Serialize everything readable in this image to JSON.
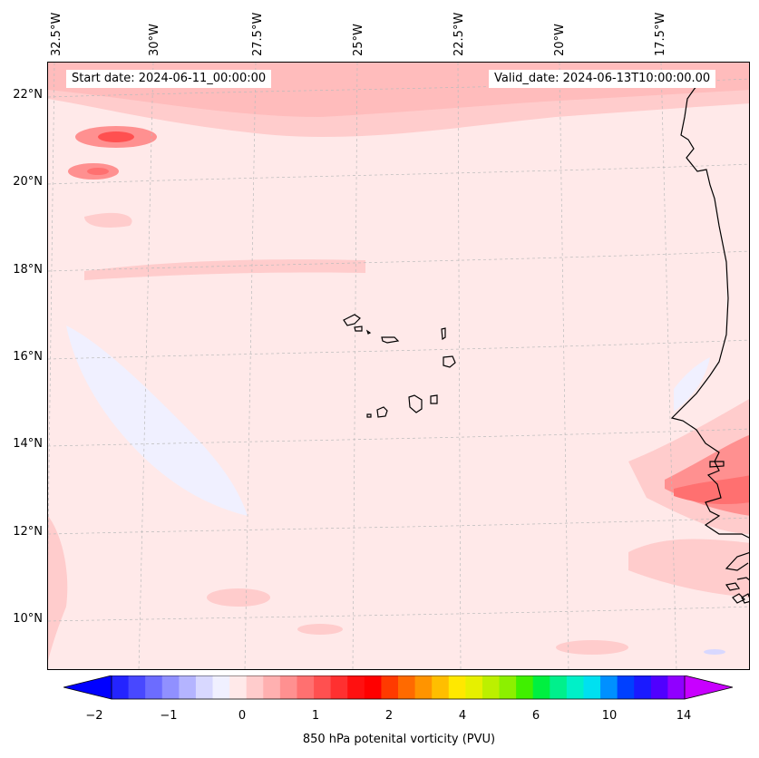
{
  "map": {
    "start_label": "Start date: 2024-06-11_00:00:00",
    "valid_label": "Valid_date: 2024-06-13T10:00:00.00",
    "lon_ticks": [
      "32.5°W",
      "30°W",
      "27.5°W",
      "25°W",
      "22.5°W",
      "20°W",
      "17.5°W"
    ],
    "lat_ticks": [
      "22°N",
      "20°N",
      "18°N",
      "16°N",
      "14°N",
      "12°N",
      "10°N"
    ],
    "background_color": "#ffe9e9"
  },
  "colorbar": {
    "title": "850 hPa potenital vorticity (PVU)",
    "tick_labels": [
      "−2",
      "−1",
      "0",
      "1",
      "2",
      "4",
      "6",
      "10",
      "14"
    ],
    "colors": [
      "#2424ff",
      "#4848ff",
      "#6c6cff",
      "#9090ff",
      "#b4b4ff",
      "#d8d8ff",
      "#f0f0ff",
      "#ffe9e9",
      "#ffcccc",
      "#ffb0b0",
      "#ff9090",
      "#ff7070",
      "#ff5050",
      "#ff3030",
      "#ff1010",
      "#ff0000",
      "#ff3a00",
      "#ff6a00",
      "#ff9400",
      "#ffbe00",
      "#ffe800",
      "#e6f000",
      "#bcf000",
      "#8cf000",
      "#40f000",
      "#00f040",
      "#00f08c",
      "#00f0c8",
      "#00e0f0",
      "#0090ff",
      "#0040ff",
      "#1a1aff",
      "#5000ff",
      "#9000ff"
    ],
    "under_color": "#0000ff",
    "over_color": "#c800ff"
  }
}
